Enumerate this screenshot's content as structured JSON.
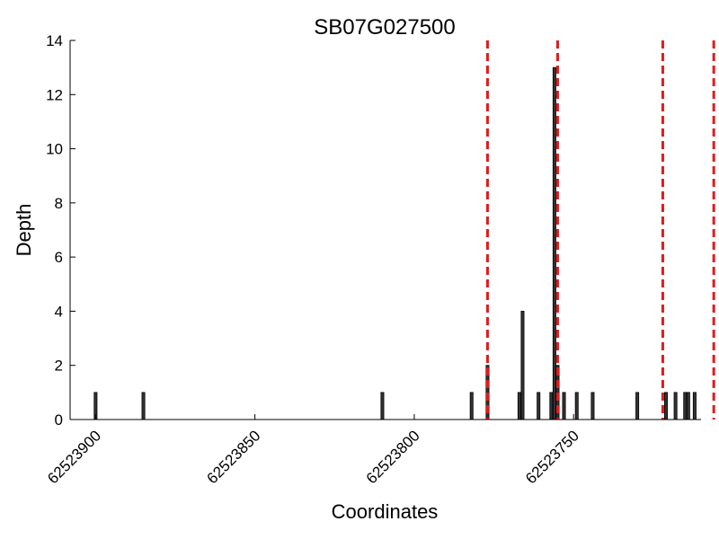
{
  "chart_data": {
    "type": "bar",
    "title": "SB07G027500",
    "xlabel": "Coordinates",
    "ylabel": "Depth",
    "xlim": [
      62523908,
      62523710
    ],
    "x_reversed": true,
    "ylim": [
      0,
      14
    ],
    "y_ticks": [
      0,
      2,
      4,
      6,
      8,
      10,
      12,
      14
    ],
    "x_ticks": [
      62523900,
      62523850,
      62523800,
      62523750
    ],
    "grid": false,
    "bar_color": "#333333",
    "marker_color": "#e41a1c",
    "bars": [
      {
        "x": 62523900,
        "y": 1
      },
      {
        "x": 62523885,
        "y": 1
      },
      {
        "x": 62523810,
        "y": 1
      },
      {
        "x": 62523782,
        "y": 1
      },
      {
        "x": 62523777,
        "y": 2
      },
      {
        "x": 62523767,
        "y": 1
      },
      {
        "x": 62523766,
        "y": 4
      },
      {
        "x": 62523761,
        "y": 1
      },
      {
        "x": 62523757,
        "y": 1
      },
      {
        "x": 62523756,
        "y": 13
      },
      {
        "x": 62523755,
        "y": 2
      },
      {
        "x": 62523753,
        "y": 1
      },
      {
        "x": 62523749,
        "y": 1
      },
      {
        "x": 62523744,
        "y": 1
      },
      {
        "x": 62523730,
        "y": 1
      },
      {
        "x": 62523721,
        "y": 1
      },
      {
        "x": 62523718,
        "y": 1
      },
      {
        "x": 62523715,
        "y": 1
      },
      {
        "x": 62523714,
        "y": 1
      },
      {
        "x": 62523712,
        "y": 1
      }
    ],
    "dashed_lines_x": [
      62523777,
      62523755,
      62523722,
      62523706
    ]
  }
}
